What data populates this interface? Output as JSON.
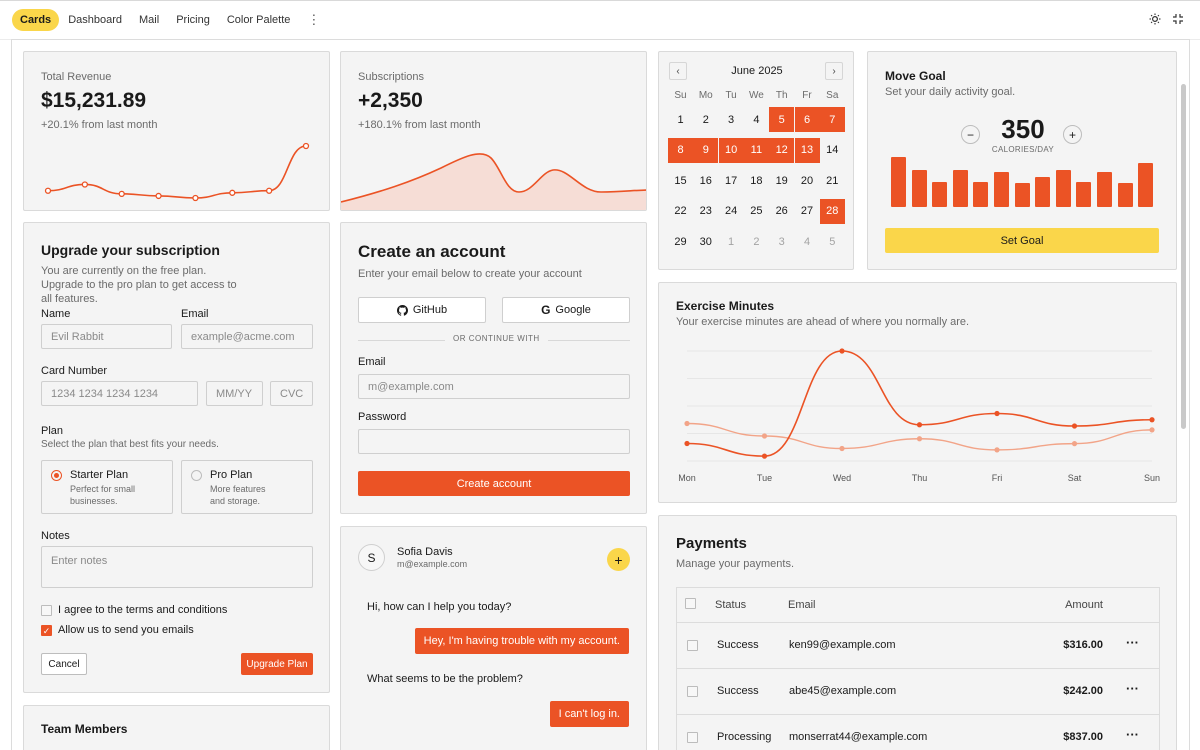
{
  "nav": {
    "tabs": [
      "Cards",
      "Dashboard",
      "Mail",
      "Pricing",
      "Color Palette"
    ],
    "active_tab": "Cards",
    "more_icon": "vertical-dots-icon",
    "theme_icon": "sun-icon",
    "collapse_icon": "collapse-icon"
  },
  "revenue": {
    "label": "Total Revenue",
    "value": "$15,231.89",
    "change": "+20.1% from last month",
    "trend": [
      6.2,
      6.8,
      5.9,
      5.7,
      5.5,
      6.0,
      6.2,
      10.5
    ]
  },
  "subscriptions": {
    "label": "Subscriptions",
    "value": "+2,350",
    "change": "+180.1% from last month"
  },
  "calendar": {
    "title": "June 2025",
    "prev_icon": "chevron-left-icon",
    "next_icon": "chevron-right-icon",
    "weekdays": [
      "Su",
      "Mo",
      "Tu",
      "We",
      "Th",
      "Fr",
      "Sa"
    ],
    "days": [
      [
        "1",
        "2",
        "3",
        "4",
        "5",
        "6",
        "7"
      ],
      [
        "8",
        "9",
        "10",
        "11",
        "12",
        "13",
        "14"
      ],
      [
        "15",
        "16",
        "17",
        "18",
        "19",
        "20",
        "21"
      ],
      [
        "22",
        "23",
        "24",
        "25",
        "26",
        "27",
        "28"
      ],
      [
        "29",
        "30",
        "1",
        "2",
        "3",
        "4",
        "5"
      ]
    ],
    "selected": [
      "5",
      "6",
      "7",
      "8",
      "9",
      "10",
      "11",
      "12",
      "13",
      "28"
    ]
  },
  "goal": {
    "title": "Move Goal",
    "subtitle": "Set your daily activity goal.",
    "value": "350",
    "unit": "CALORIES/DAY",
    "minus_label": "−",
    "plus_label": "+",
    "bars": [
      400,
      300,
      200,
      300,
      200,
      278,
      189,
      239,
      300,
      200,
      278,
      189,
      349
    ],
    "button_label": "Set Goal"
  },
  "upgrade": {
    "title": "Upgrade your subscription",
    "description": "You are currently on the free plan. Upgrade to the pro plan to get access to all features.",
    "name_label": "Name",
    "name_placeholder": "Evil Rabbit",
    "email_label": "Email",
    "email_placeholder": "example@acme.com",
    "card_label": "Card Number",
    "card_placeholder": "1234 1234 1234 1234",
    "expiry_placeholder": "MM/YY",
    "cvc_placeholder": "CVC",
    "plan_label": "Plan",
    "plan_help": "Select the plan that best fits your needs.",
    "plans": [
      {
        "name": "Starter Plan",
        "desc": "Perfect for small businesses.",
        "selected": true
      },
      {
        "name": "Pro Plan",
        "desc": "More features and storage.",
        "selected": false
      }
    ],
    "notes_label": "Notes",
    "notes_placeholder": "Enter notes",
    "terms_label": "I agree to the terms and conditions",
    "terms_checked": false,
    "emails_label": "Allow us to send you emails",
    "emails_checked": true,
    "cancel_label": "Cancel",
    "submit_label": "Upgrade Plan"
  },
  "team": {
    "title": "Team Members"
  },
  "account": {
    "title": "Create an account",
    "subtitle": "Enter your email below to create your account",
    "github_label": "GitHub",
    "google_label": "Google",
    "divider": "OR CONTINUE WITH",
    "email_label": "Email",
    "email_placeholder": "m@example.com",
    "password_label": "Password",
    "submit_label": "Create account"
  },
  "chat": {
    "avatar": "S",
    "name": "Sofia Davis",
    "email": "m@example.com",
    "add_label": "+",
    "messages": [
      {
        "text": "Hi, how can I help you today?",
        "from": "agent"
      },
      {
        "text": "Hey, I'm having trouble with my account.",
        "from": "user"
      },
      {
        "text": "What seems to be the problem?",
        "from": "agent"
      },
      {
        "text": "I can't log in.",
        "from": "user"
      }
    ]
  },
  "exercise": {
    "title": "Exercise Minutes",
    "subtitle": "Your exercise minutes are ahead of where you normally are.",
    "days": [
      "Mon",
      "Tue",
      "Wed",
      "Thu",
      "Fri",
      "Sat",
      "Sun"
    ],
    "today": [
      240,
      139,
      980,
      390,
      480,
      380,
      430
    ],
    "average": [
      400,
      300,
      200,
      278,
      189,
      239,
      349
    ],
    "colors": {
      "today": "#eb5325",
      "average": "#f2a488"
    }
  },
  "payments": {
    "title": "Payments",
    "subtitle": "Manage your payments.",
    "headers": [
      "Status",
      "Email",
      "Amount"
    ],
    "rows": [
      {
        "status": "Success",
        "email": "ken99@example.com",
        "amount": "$316.00"
      },
      {
        "status": "Success",
        "email": "abe45@example.com",
        "amount": "$242.00"
      },
      {
        "status": "Processing",
        "email": "monserrat44@example.com",
        "amount": "$837.00"
      }
    ],
    "row_menu": "···"
  },
  "colors": {
    "accent": "#eb5325",
    "highlight": "#fad64a",
    "card_bg": "#f4f4f4"
  }
}
